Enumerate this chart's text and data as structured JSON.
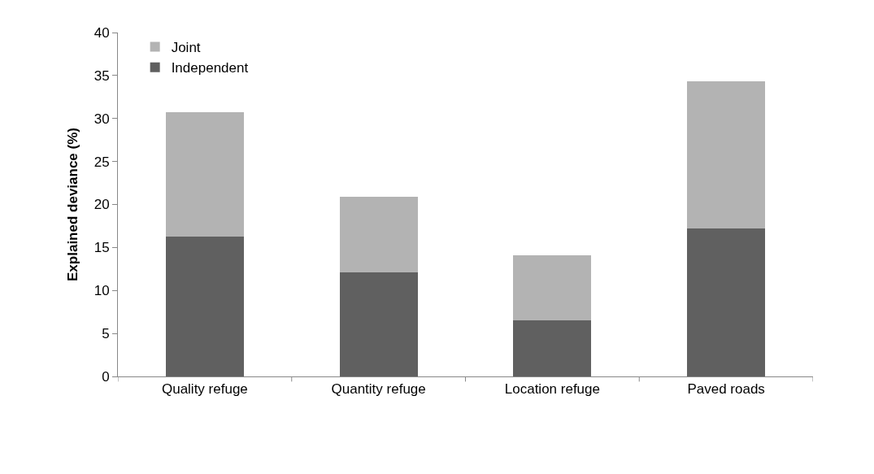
{
  "chart_data": {
    "type": "bar",
    "stacked": true,
    "ylabel": "Explained deviance (%)",
    "categories": [
      "Quality refuge",
      "Quantity refuge",
      "Location refuge",
      "Paved roads"
    ],
    "series": [
      {
        "name": "Independent",
        "color": "#606060",
        "values": [
          16.3,
          12.1,
          6.5,
          17.2
        ]
      },
      {
        "name": "Joint",
        "color": "#b3b3b3",
        "values": [
          14.4,
          8.8,
          7.6,
          17.1
        ]
      }
    ],
    "ylim": [
      0,
      40
    ],
    "yticks": [
      0,
      5,
      10,
      15,
      20,
      25,
      30,
      35,
      40
    ],
    "legend": "top left"
  }
}
